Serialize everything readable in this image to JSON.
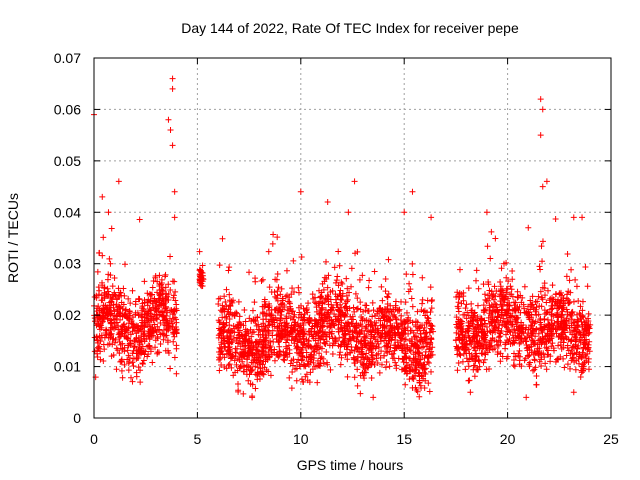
{
  "chart_data": {
    "type": "scatter",
    "title": "Day 144 of 2022, Rate Of TEC Index for receiver pepe",
    "xlabel": "GPS time / hours",
    "ylabel": "ROTI / TECUs",
    "xlim": [
      0,
      25
    ],
    "ylim": [
      0,
      0.07
    ],
    "xticks": [
      0,
      5,
      10,
      15,
      20,
      25
    ],
    "yticks": [
      0,
      0.01,
      0.02,
      0.03,
      0.04,
      0.05,
      0.06,
      0.07
    ],
    "xtick_labels": [
      "0",
      "5",
      "10",
      "15",
      "20",
      "25"
    ],
    "ytick_labels": [
      "0",
      "0.01",
      "0.02",
      "0.03",
      "0.04",
      "0.05",
      "0.06",
      "0.07"
    ],
    "grid": true,
    "marker": "+",
    "color": "#ff0000",
    "series": [
      {
        "name": "ROTI",
        "segments": [
          {
            "x_range": [
              0.0,
              4.0
            ],
            "y_base": 0.017,
            "y_spread": 0.007
          },
          {
            "x_range": [
              5.1,
              5.3
            ],
            "y_base": 0.029,
            "y_spread": 0.002
          },
          {
            "x_range": [
              6.0,
              16.4
            ],
            "y_base": 0.016,
            "y_spread": 0.007
          },
          {
            "x_range": [
              17.5,
              24.0
            ],
            "y_base": 0.017,
            "y_spread": 0.007
          }
        ],
        "outliers": [
          {
            "x": 0.0,
            "y": 0.059
          },
          {
            "x": 0.4,
            "y": 0.043
          },
          {
            "x": 0.7,
            "y": 0.04
          },
          {
            "x": 1.2,
            "y": 0.046
          },
          {
            "x": 3.6,
            "y": 0.058
          },
          {
            "x": 3.7,
            "y": 0.056
          },
          {
            "x": 3.8,
            "y": 0.066
          },
          {
            "x": 3.8,
            "y": 0.064
          },
          {
            "x": 3.8,
            "y": 0.053
          },
          {
            "x": 3.9,
            "y": 0.044
          },
          {
            "x": 3.9,
            "y": 0.039
          },
          {
            "x": 10.0,
            "y": 0.044
          },
          {
            "x": 11.3,
            "y": 0.042
          },
          {
            "x": 12.3,
            "y": 0.04
          },
          {
            "x": 12.6,
            "y": 0.046
          },
          {
            "x": 13.5,
            "y": 0.004
          },
          {
            "x": 15.4,
            "y": 0.044
          },
          {
            "x": 15.0,
            "y": 0.04
          },
          {
            "x": 16.3,
            "y": 0.039
          },
          {
            "x": 18.2,
            "y": 0.005
          },
          {
            "x": 19.0,
            "y": 0.04
          },
          {
            "x": 21.0,
            "y": 0.037
          },
          {
            "x": 21.6,
            "y": 0.062
          },
          {
            "x": 21.7,
            "y": 0.06
          },
          {
            "x": 21.6,
            "y": 0.055
          },
          {
            "x": 21.7,
            "y": 0.045
          },
          {
            "x": 21.9,
            "y": 0.046
          },
          {
            "x": 23.2,
            "y": 0.039
          },
          {
            "x": 23.6,
            "y": 0.039
          },
          {
            "x": 23.2,
            "y": 0.005
          },
          {
            "x": 20.9,
            "y": 0.004
          }
        ]
      }
    ]
  }
}
